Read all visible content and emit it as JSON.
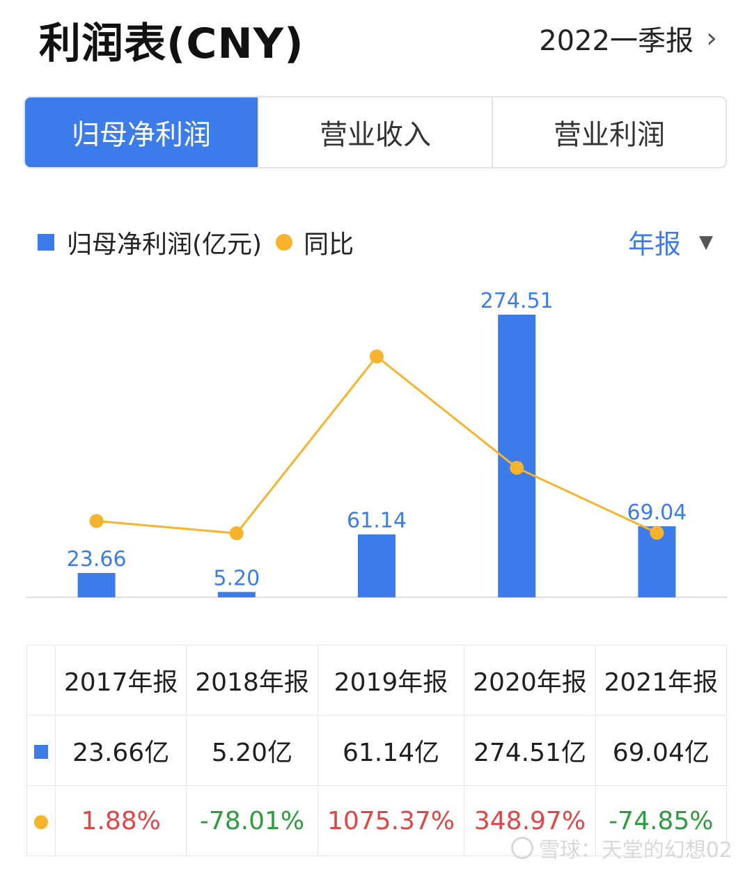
{
  "header": {
    "title": "利润表(CNY)",
    "period": "2022一季报",
    "period_chevron": "›"
  },
  "tabs": [
    {
      "label": "归母净利润",
      "active": true
    },
    {
      "label": "营业收入",
      "active": false
    },
    {
      "label": "营业利润",
      "active": false
    }
  ],
  "legend": {
    "bar_label": "归母净利润(亿元)",
    "line_label": "同比",
    "period_type": "年报",
    "caret": "▼"
  },
  "colors": {
    "accent": "#3b7cea",
    "line": "#f7b32b",
    "positive": "#e04545",
    "negative": "#2e9b3f"
  },
  "chart_data": {
    "type": "bar",
    "categories": [
      "2017年报",
      "2018年报",
      "2019年报",
      "2020年报",
      "2021年报"
    ],
    "series": [
      {
        "name": "归母净利润(亿元)",
        "type": "bar",
        "values": [
          23.66,
          5.2,
          61.14,
          274.51,
          69.04
        ],
        "labels": [
          "23.66",
          "5.20",
          "61.14",
          "274.51",
          "69.04"
        ]
      },
      {
        "name": "同比",
        "type": "line",
        "values": [
          1.88,
          -78.01,
          1075.37,
          348.97,
          -74.85
        ]
      }
    ]
  },
  "table": {
    "headers": [
      "2017年报",
      "2018年报",
      "2019年报",
      "2020年报",
      "2021年报"
    ],
    "values": [
      "23.66亿",
      "5.20亿",
      "61.14亿",
      "274.51亿",
      "69.04亿"
    ],
    "yoy": [
      "1.88%",
      "-78.01%",
      "1075.37%",
      "348.97%",
      "-74.85%"
    ]
  },
  "watermark": "雪球：天堂的幻想02"
}
